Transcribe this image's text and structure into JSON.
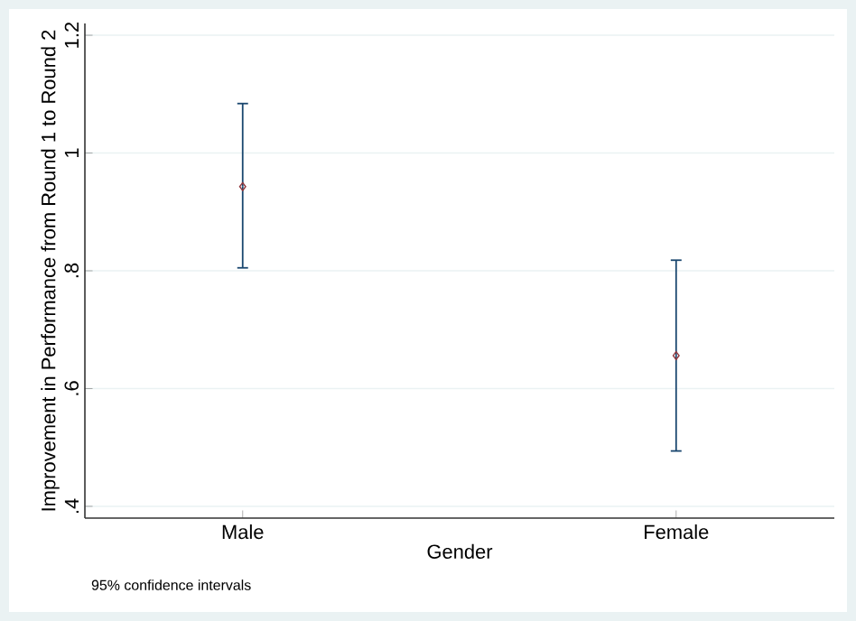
{
  "chart_data": {
    "type": "scatter",
    "categories": [
      "Male",
      "Female"
    ],
    "series": [
      {
        "color": "#90353b",
        "values": [
          0.943,
          0.656
        ],
        "errors": [
          [
            0.805,
            1.084
          ],
          [
            0.494,
            0.818
          ]
        ]
      }
    ],
    "xlabel": "Gender",
    "ylabel": "Improvement in Performance from Round 1 to Round 2",
    "ylim": [
      0.38,
      1.22
    ],
    "yticks": [
      {
        "value": 0.4,
        "label": ".4"
      },
      {
        "value": 0.6,
        "label": ".6"
      },
      {
        "value": 0.8,
        "label": ".8"
      },
      {
        "value": 1,
        "label": "1"
      },
      {
        "value": 1.2,
        "label": "1.2"
      }
    ],
    "grid": "y",
    "marker": "diamond",
    "annotations": [
      "95% confidence intervals"
    ]
  }
}
